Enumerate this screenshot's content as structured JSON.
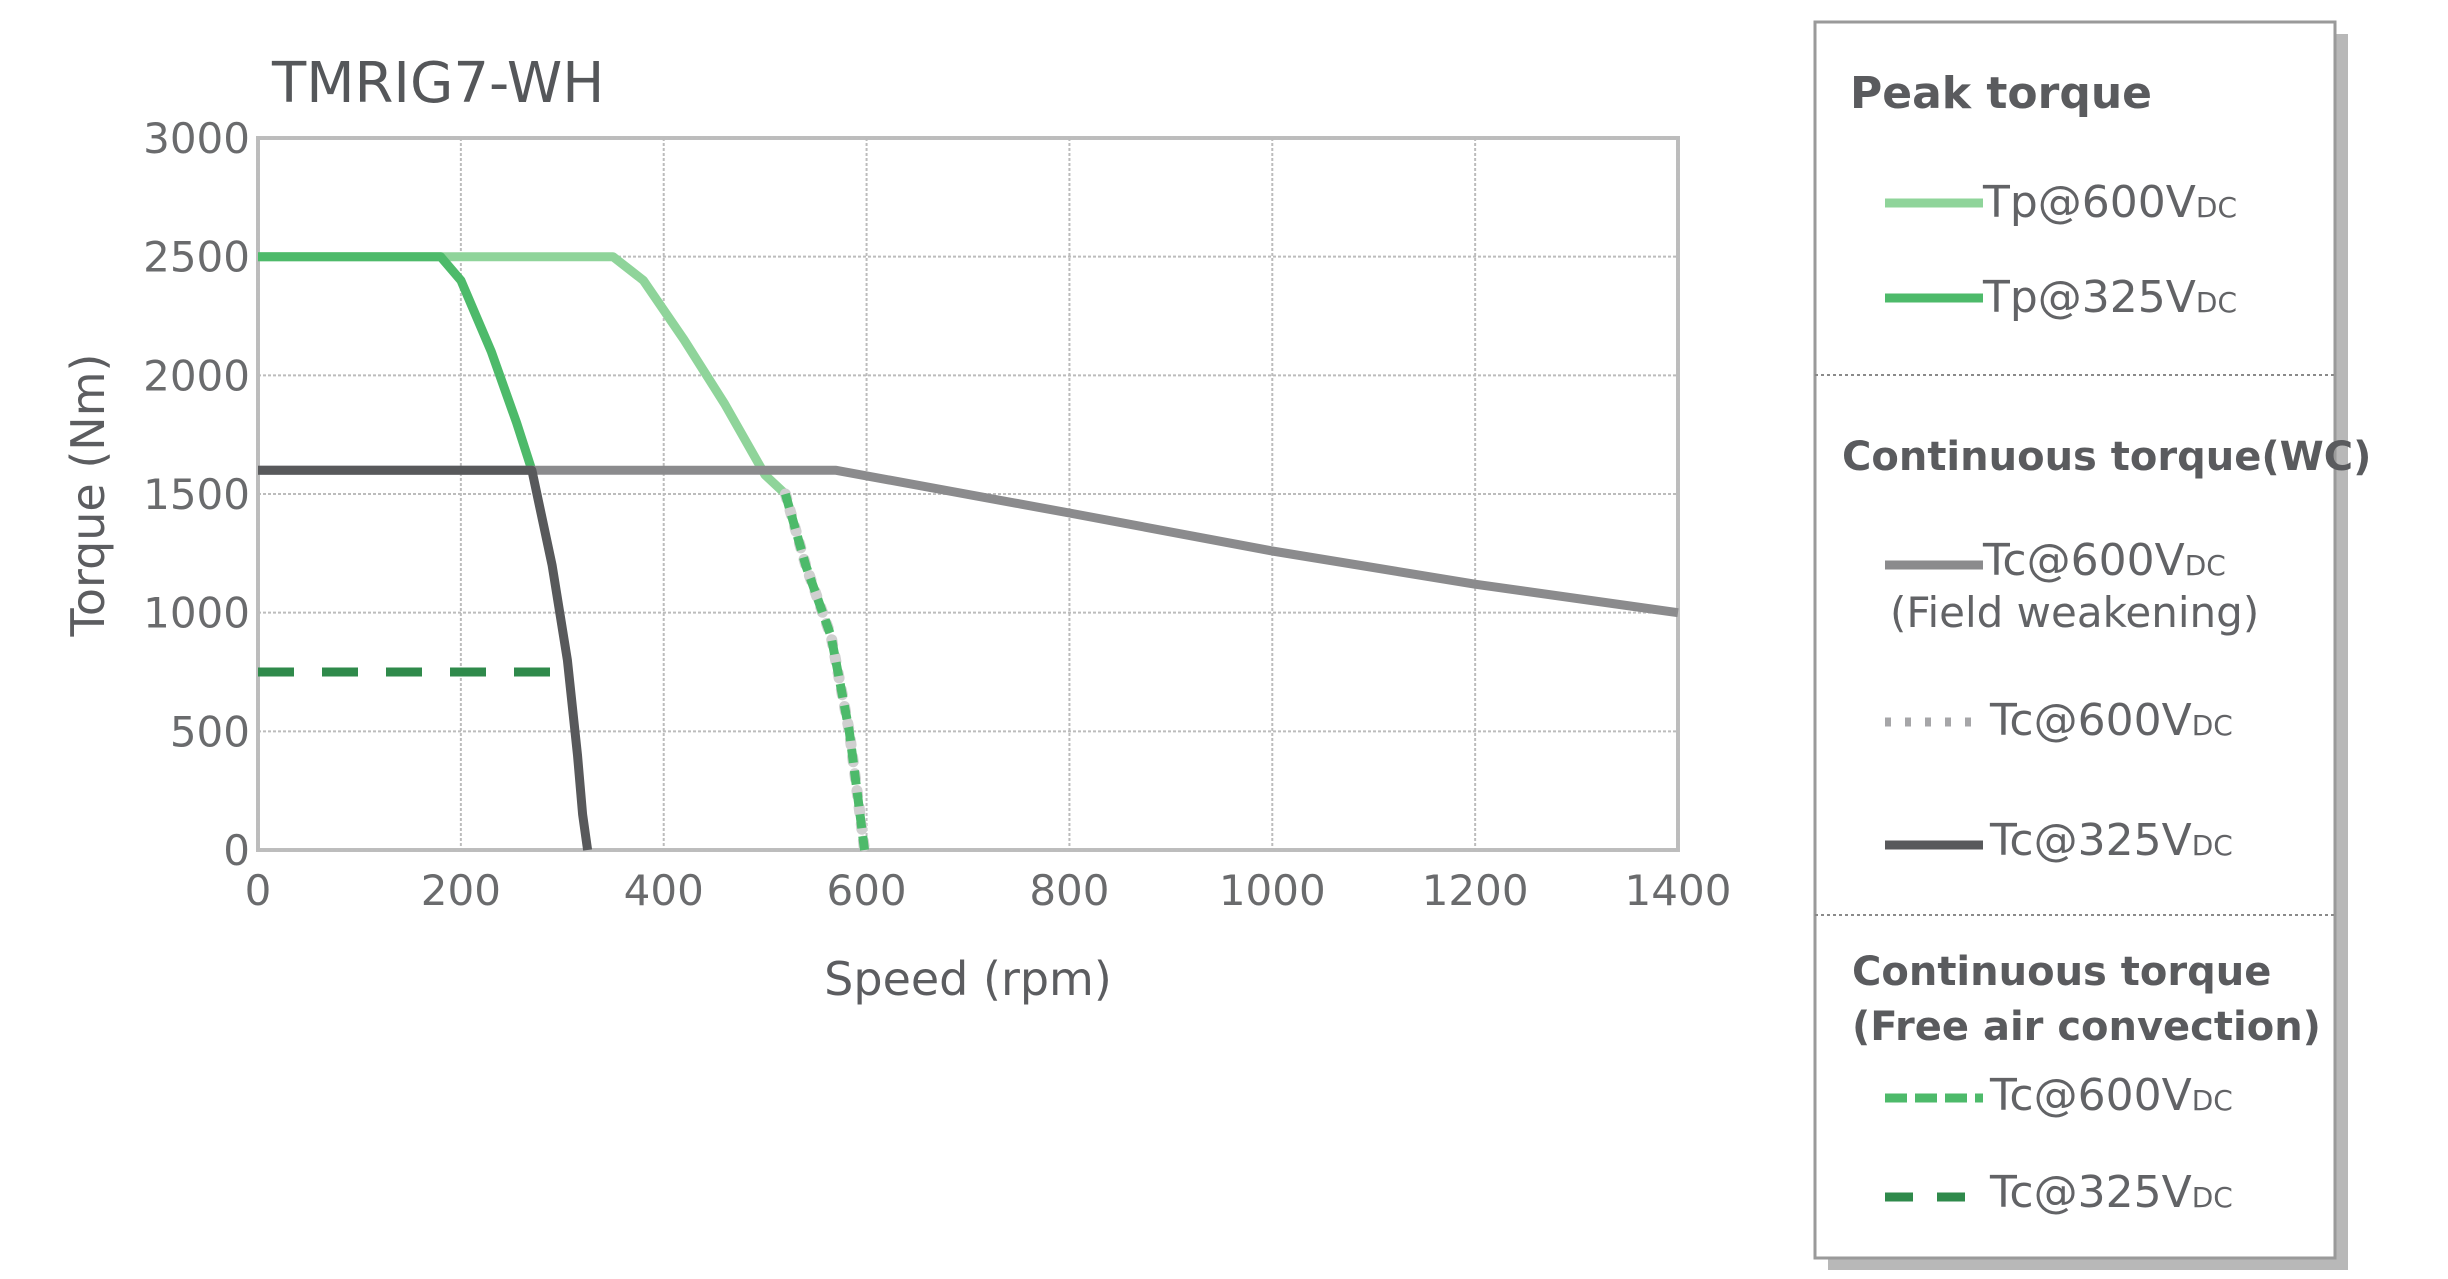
{
  "colors": {
    "light_green": "#8fd49a",
    "green": "#4dba6a",
    "dark_green": "#2f8a4b",
    "gray": "#8b8b8d",
    "dark_gray": "#58595b",
    "grid": "#bcbcbc"
  },
  "chart_data": {
    "type": "line",
    "title": "TMRIG7-WH",
    "xlabel": "Speed (rpm)",
    "ylabel": "Torque (Nm)",
    "xlim": [
      0,
      1400
    ],
    "ylim": [
      0,
      3000
    ],
    "xticks": [
      "0",
      "200",
      "400",
      "600",
      "800",
      "1000",
      "1200",
      "1400"
    ],
    "yticks": [
      "0",
      "500",
      "1000",
      "1500",
      "2000",
      "2500",
      "3000"
    ],
    "grid": true,
    "series": [
      {
        "name": "Tp@600VDC",
        "group": "Peak torque",
        "style": "solid",
        "color": "light_green",
        "x": [
          0,
          350,
          380,
          420,
          460,
          500,
          520
        ],
        "y": [
          2500,
          2500,
          2400,
          2150,
          1880,
          1580,
          1500
        ]
      },
      {
        "name": "Tp@325VDC",
        "group": "Peak torque",
        "style": "solid",
        "color": "green",
        "x": [
          0,
          180,
          200,
          230,
          255,
          270
        ],
        "y": [
          2500,
          2500,
          2400,
          2100,
          1800,
          1600
        ]
      },
      {
        "name": "Tc@600VDC (Field weakening)",
        "group": "Continuous torque(WC)",
        "style": "solid",
        "color": "gray",
        "x": [
          0,
          570,
          800,
          1000,
          1200,
          1400
        ],
        "y": [
          1600,
          1600,
          1420,
          1260,
          1120,
          1000
        ]
      },
      {
        "name": "Tc@600VDC",
        "group": "Continuous torque(WC)",
        "style": "dotted",
        "color": "gray",
        "x": [
          520,
          540,
          565,
          583,
          592,
          598
        ],
        "y": [
          1500,
          1200,
          900,
          500,
          200,
          0
        ]
      },
      {
        "name": "Tc@325VDC",
        "group": "Continuous torque(WC)",
        "style": "solid",
        "color": "dark_gray",
        "x": [
          0,
          270,
          290,
          305,
          315,
          320,
          325
        ],
        "y": [
          1600,
          1600,
          1200,
          800,
          400,
          150,
          0
        ]
      },
      {
        "name": "Tc@600VDC",
        "group": "Continuous torque (Free air convection)",
        "style": "dashed",
        "color": "green",
        "x": [
          520,
          540,
          565,
          583,
          592,
          598
        ],
        "y": [
          1500,
          1200,
          900,
          500,
          200,
          0
        ]
      },
      {
        "name": "Tc@325VDC",
        "group": "Continuous torque (Free air convection)",
        "style": "dashed-wide",
        "color": "dark_green",
        "x": [
          0,
          295
        ],
        "y": [
          750,
          750
        ]
      }
    ]
  },
  "legend": {
    "peak_title": "Peak torque",
    "peak_items": [
      {
        "main": "Tp@600V",
        "sub": "DC"
      },
      {
        "main": "Tp@325V",
        "sub": "DC"
      }
    ],
    "wc_title": "Continuous torque(WC)",
    "wc_items": [
      {
        "main": "Tc@600V",
        "sub": "DC",
        "note": "(Field weakening)"
      },
      {
        "main": "Tc@600V",
        "sub": "DC"
      },
      {
        "main": "Tc@325V",
        "sub": "DC"
      }
    ],
    "fac_title_line1": "Continuous torque",
    "fac_title_line2": "(Free air convection)",
    "fac_items": [
      {
        "main": "Tc@600V",
        "sub": "DC"
      },
      {
        "main": "Tc@325V",
        "sub": "DC"
      }
    ]
  }
}
